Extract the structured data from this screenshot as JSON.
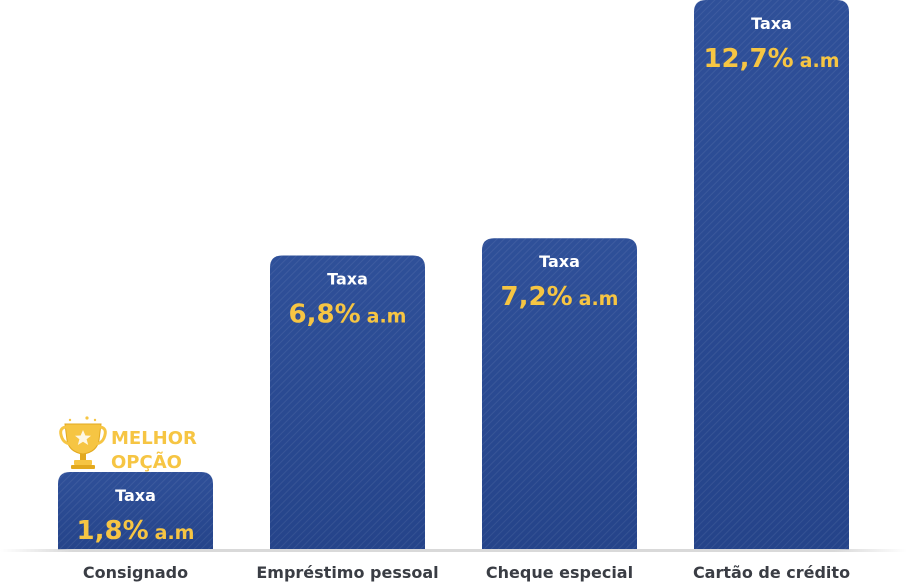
{
  "chart_data": {
    "type": "bar",
    "categories": [
      "Consignado",
      "Empréstimo pessoal",
      "Cheque especial",
      "Cartão de crédito"
    ],
    "values": [
      1.8,
      6.8,
      7.2,
      12.7
    ],
    "value_labels": [
      "1,8%",
      "6,8%",
      "7,2%",
      "12,7%"
    ],
    "bar_title": "Taxa",
    "unit_suffix": "a.m",
    "highlight": {
      "index": 0,
      "line1": "MELHOR",
      "line2": "OPÇÃO",
      "icon": "trophy-icon"
    },
    "colors": {
      "bar": "#2b4c97",
      "value_text": "#f6c543",
      "label_text": "#ffffff",
      "category_text": "#3a3d44",
      "badge": "#f6c543"
    },
    "title": "",
    "xlabel": "",
    "ylabel": "",
    "grid": false
  }
}
